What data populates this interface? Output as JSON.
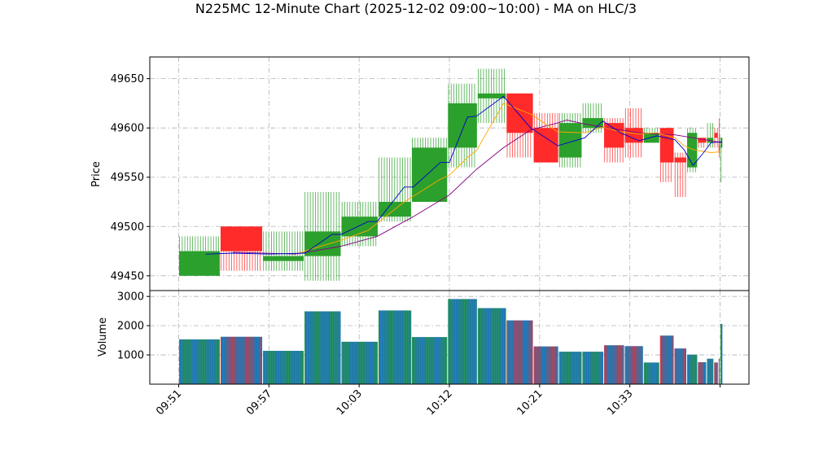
{
  "chart_data": {
    "title": "N225MC 12-Minute Chart (2025-12-02 09:00~10:00) - MA on HLC/3",
    "type": "candlestick",
    "price_panel": {
      "ylabel": "Price",
      "ylim": [
        49435,
        49672
      ],
      "yticks": [
        49450,
        49500,
        49550,
        49600,
        49650
      ],
      "grid": true
    },
    "volume_panel": {
      "ylabel": "Volume",
      "ylim": [
        0,
        3200
      ],
      "yticks": [
        1000,
        2000,
        3000
      ],
      "grid": true
    },
    "x_ticks": [
      {
        "label": "09:51",
        "index": 0
      },
      {
        "label": "09:57",
        "index": 10
      },
      {
        "label": "10:03",
        "index": 20
      },
      {
        "label": "10:12",
        "index": 30
      },
      {
        "label": "10:21",
        "index": 40
      },
      {
        "label": "10:33",
        "index": 50
      },
      {
        "label": "",
        "index": 60
      }
    ],
    "x_range": [
      -3.2,
      63.2
    ],
    "colors": {
      "up": "#2ca02c",
      "down": "#ff2a2a",
      "ma_fast": "#0000cc",
      "ma_mid": "#ffa500",
      "ma_slow": "#800080",
      "volume": "#1f77b4"
    },
    "candles": [
      {
        "x0": 0,
        "x1": 4.6,
        "open": 49450,
        "close": 49475,
        "high": 49490,
        "low": 49450,
        "volume": 1530
      },
      {
        "x0": 4.6,
        "x1": 9.3,
        "open": 49500,
        "close": 49475,
        "high": 49500,
        "low": 49455,
        "volume": 1620
      },
      {
        "x0": 9.3,
        "x1": 13.9,
        "open": 49465,
        "close": 49470,
        "high": 49495,
        "low": 49455,
        "volume": 1140
      },
      {
        "x0": 13.9,
        "x1": 18.0,
        "open": 49470,
        "close": 49495,
        "high": 49535,
        "low": 49445,
        "volume": 2490
      },
      {
        "x0": 18.0,
        "x1": 22.1,
        "open": 49490,
        "close": 49510,
        "high": 49525,
        "low": 49480,
        "volume": 1450
      },
      {
        "x0": 22.1,
        "x1": 25.8,
        "open": 49510,
        "close": 49525,
        "high": 49570,
        "low": 49505,
        "volume": 2520
      },
      {
        "x0": 25.8,
        "x1": 29.8,
        "open": 49525,
        "close": 49580,
        "high": 49590,
        "low": 49525,
        "volume": 1610
      },
      {
        "x0": 29.8,
        "x1": 33.1,
        "open": 49580,
        "close": 49625,
        "high": 49645,
        "low": 49560,
        "volume": 2910
      },
      {
        "x0": 33.1,
        "x1": 36.3,
        "open": 49630,
        "close": 49635,
        "high": 49660,
        "low": 49605,
        "volume": 2600
      },
      {
        "x0": 36.3,
        "x1": 39.3,
        "open": 49635,
        "close": 49595,
        "high": 49635,
        "low": 49570,
        "volume": 2180
      },
      {
        "x0": 39.3,
        "x1": 42.1,
        "open": 49600,
        "close": 49565,
        "high": 49615,
        "low": 49565,
        "volume": 1290
      },
      {
        "x0": 42.1,
        "x1": 44.7,
        "open": 49570,
        "close": 49605,
        "high": 49615,
        "low": 49560,
        "volume": 1110
      },
      {
        "x0": 44.7,
        "x1": 47.1,
        "open": 49600,
        "close": 49610,
        "high": 49625,
        "low": 49595,
        "volume": 1110
      },
      {
        "x0": 47.1,
        "x1": 49.4,
        "open": 49605,
        "close": 49580,
        "high": 49610,
        "low": 49565,
        "volume": 1330
      },
      {
        "x0": 49.4,
        "x1": 51.5,
        "open": 49600,
        "close": 49585,
        "high": 49620,
        "low": 49570,
        "volume": 1300
      },
      {
        "x0": 51.5,
        "x1": 53.3,
        "open": 49585,
        "close": 49595,
        "high": 49600,
        "low": 49585,
        "volume": 740
      },
      {
        "x0": 53.3,
        "x1": 54.9,
        "open": 49600,
        "close": 49565,
        "high": 49600,
        "low": 49545,
        "volume": 1660
      },
      {
        "x0": 54.9,
        "x1": 56.3,
        "open": 49570,
        "close": 49565,
        "high": 49575,
        "low": 49530,
        "volume": 1220
      },
      {
        "x0": 56.3,
        "x1": 57.5,
        "open": 49560,
        "close": 49595,
        "high": 49600,
        "low": 49555,
        "volume": 1010
      },
      {
        "x0": 57.5,
        "x1": 58.5,
        "open": 49590,
        "close": 49585,
        "high": 49590,
        "low": 49580,
        "volume": 750
      },
      {
        "x0": 58.5,
        "x1": 59.3,
        "open": 49585,
        "close": 49590,
        "high": 49605,
        "low": 49580,
        "volume": 870
      },
      {
        "x0": 59.3,
        "x1": 59.8,
        "open": 49595,
        "close": 49590,
        "high": 49600,
        "low": 49580,
        "volume": 740
      },
      {
        "x0": 59.8,
        "x1": 60.0,
        "open": 49590,
        "close": 49575,
        "high": 49610,
        "low": 49570,
        "volume": 870
      },
      {
        "x0": 60.0,
        "x1": 60.3,
        "open": 49580,
        "close": 49590,
        "high": 49590,
        "low": 49545,
        "volume": 2060
      }
    ],
    "ma_fast": [
      [
        3,
        49472
      ],
      [
        6,
        49473
      ],
      [
        10,
        49472
      ],
      [
        14,
        49473
      ],
      [
        17,
        49492
      ],
      [
        18,
        49492
      ],
      [
        21,
        49505
      ],
      [
        22,
        49505
      ],
      [
        25,
        49540
      ],
      [
        26,
        49540
      ],
      [
        29,
        49565
      ],
      [
        30,
        49565
      ],
      [
        32,
        49611
      ],
      [
        33,
        49612
      ],
      [
        36,
        49632
      ],
      [
        39,
        49600
      ],
      [
        42,
        49582
      ],
      [
        45,
        49590
      ],
      [
        47,
        49607
      ],
      [
        49,
        49595
      ],
      [
        51,
        49587
      ],
      [
        53,
        49592
      ],
      [
        55,
        49588
      ],
      [
        56,
        49578
      ],
      [
        57,
        49562
      ],
      [
        58,
        49573
      ],
      [
        59,
        49585
      ],
      [
        60.2,
        49586
      ]
    ],
    "ma_mid": [
      [
        13,
        49472
      ],
      [
        15,
        49478
      ],
      [
        18,
        49486
      ],
      [
        21,
        49496
      ],
      [
        25,
        49525
      ],
      [
        29,
        49548
      ],
      [
        30,
        49552
      ],
      [
        32,
        49570
      ],
      [
        33,
        49577
      ],
      [
        36,
        49625
      ],
      [
        39,
        49614
      ],
      [
        42,
        49596
      ],
      [
        45,
        49595
      ],
      [
        47,
        49601
      ],
      [
        49,
        49596
      ],
      [
        51,
        49594
      ],
      [
        53,
        49595
      ],
      [
        55,
        49590
      ],
      [
        56,
        49582
      ],
      [
        57,
        49578
      ],
      [
        59,
        49575
      ],
      [
        60.2,
        49576
      ]
    ],
    "ma_slow": [
      [
        6,
        49474
      ],
      [
        13,
        49472
      ],
      [
        18,
        49480
      ],
      [
        22,
        49490
      ],
      [
        26,
        49510
      ],
      [
        30,
        49532
      ],
      [
        33,
        49558
      ],
      [
        36,
        49580
      ],
      [
        39,
        49598
      ],
      [
        42,
        49605
      ],
      [
        43,
        49608
      ],
      [
        45,
        49604
      ],
      [
        47,
        49601
      ],
      [
        49,
        49598
      ],
      [
        51,
        49595
      ],
      [
        53,
        49594
      ],
      [
        55,
        49593
      ],
      [
        57,
        49590
      ],
      [
        59,
        49587
      ],
      [
        60.2,
        49585
      ]
    ]
  }
}
